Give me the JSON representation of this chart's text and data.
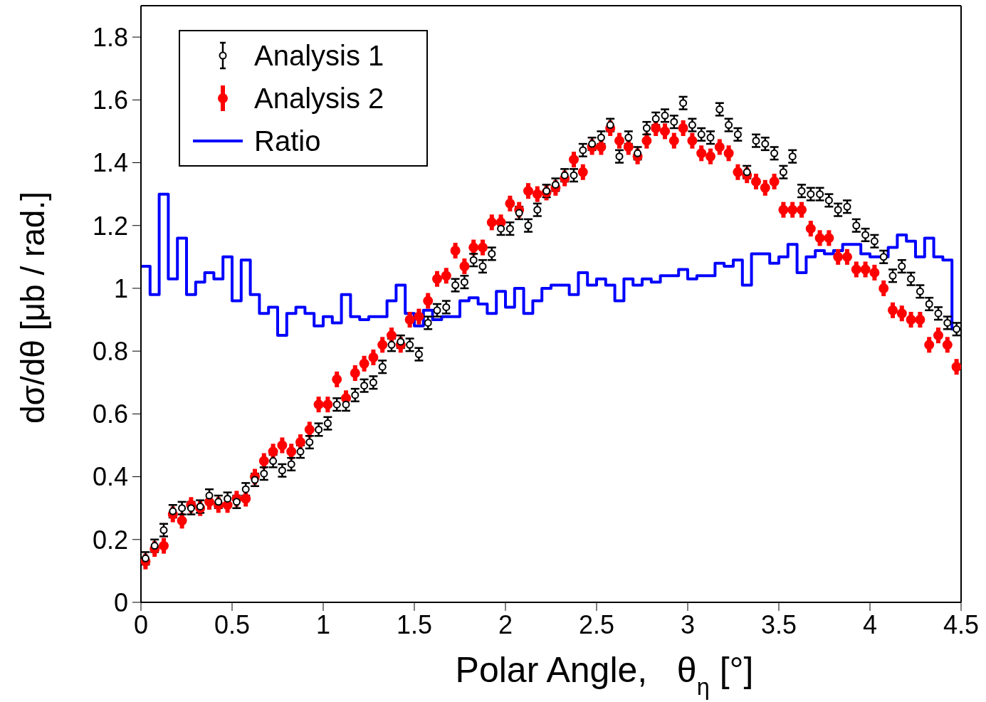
{
  "chart_data": {
    "type": "scatter",
    "xlabel": "Polar Angle,   θ$_{η}$ [°]",
    "ylabel": "dσ/dθ [μb / rad.]",
    "x": [
      0.025,
      0.075,
      0.125,
      0.175,
      0.225,
      0.275,
      0.325,
      0.375,
      0.425,
      0.475,
      0.525,
      0.575,
      0.625,
      0.675,
      0.725,
      0.775,
      0.825,
      0.875,
      0.925,
      0.975,
      1.025,
      1.075,
      1.125,
      1.175,
      1.225,
      1.275,
      1.325,
      1.375,
      1.425,
      1.475,
      1.525,
      1.575,
      1.625,
      1.675,
      1.725,
      1.775,
      1.825,
      1.875,
      1.925,
      1.975,
      2.025,
      2.075,
      2.125,
      2.175,
      2.225,
      2.275,
      2.325,
      2.375,
      2.425,
      2.475,
      2.525,
      2.575,
      2.625,
      2.675,
      2.725,
      2.775,
      2.825,
      2.875,
      2.925,
      2.975,
      3.025,
      3.075,
      3.125,
      3.175,
      3.225,
      3.275,
      3.325,
      3.375,
      3.425,
      3.475,
      3.525,
      3.575,
      3.625,
      3.675,
      3.725,
      3.775,
      3.825,
      3.875,
      3.925,
      3.975,
      4.025,
      4.075,
      4.125,
      4.175,
      4.225,
      4.275,
      4.325,
      4.375,
      4.425,
      4.475
    ],
    "series": [
      {
        "name": "Analysis 1",
        "color": "#000000",
        "marker": "circle",
        "values": [
          0.14,
          0.18,
          0.23,
          0.29,
          0.3,
          0.3,
          0.305,
          0.34,
          0.32,
          0.33,
          0.32,
          0.36,
          0.39,
          0.41,
          0.45,
          0.42,
          0.44,
          0.48,
          0.51,
          0.55,
          0.57,
          0.63,
          0.63,
          0.66,
          0.69,
          0.7,
          0.75,
          0.82,
          0.83,
          0.82,
          0.79,
          0.89,
          0.93,
          0.94,
          1.01,
          1.02,
          1.09,
          1.07,
          1.11,
          1.19,
          1.19,
          1.24,
          1.2,
          1.25,
          1.31,
          1.33,
          1.36,
          1.36,
          1.44,
          1.46,
          1.48,
          1.52,
          1.42,
          1.48,
          1.43,
          1.51,
          1.54,
          1.55,
          1.53,
          1.59,
          1.52,
          1.49,
          1.48,
          1.57,
          1.52,
          1.49,
          1.37,
          1.47,
          1.46,
          1.43,
          1.37,
          1.42,
          1.31,
          1.3,
          1.3,
          1.28,
          1.25,
          1.26,
          1.2,
          1.17,
          1.15,
          1.1,
          1.04,
          1.07,
          1.03,
          0.99,
          0.95,
          0.92,
          0.89,
          0.87
        ],
        "errors": [
          0.02,
          0.02,
          0.02,
          0.02,
          0.02,
          0.02,
          0.02,
          0.02,
          0.02,
          0.02,
          0.02,
          0.02,
          0.02,
          0.02,
          0.02,
          0.02,
          0.02,
          0.02,
          0.02,
          0.02,
          0.02,
          0.02,
          0.02,
          0.02,
          0.02,
          0.02,
          0.02,
          0.02,
          0.02,
          0.02,
          0.02,
          0.02,
          0.02,
          0.02,
          0.02,
          0.02,
          0.02,
          0.02,
          0.02,
          0.02,
          0.02,
          0.02,
          0.02,
          0.02,
          0.02,
          0.02,
          0.02,
          0.02,
          0.02,
          0.02,
          0.02,
          0.02,
          0.02,
          0.02,
          0.02,
          0.02,
          0.02,
          0.02,
          0.02,
          0.02,
          0.02,
          0.02,
          0.02,
          0.02,
          0.02,
          0.02,
          0.02,
          0.02,
          0.02,
          0.02,
          0.02,
          0.02,
          0.02,
          0.02,
          0.02,
          0.02,
          0.02,
          0.02,
          0.02,
          0.02,
          0.02,
          0.02,
          0.02,
          0.02,
          0.02,
          0.02,
          0.02,
          0.02,
          0.02,
          0.02
        ]
      },
      {
        "name": "Analysis 2",
        "color": "#ff0000",
        "marker": "circle",
        "values": [
          0.13,
          0.17,
          0.18,
          0.28,
          0.26,
          0.31,
          0.3,
          0.32,
          0.31,
          0.31,
          0.33,
          0.33,
          0.4,
          0.45,
          0.48,
          0.5,
          0.48,
          0.51,
          0.55,
          0.63,
          0.63,
          0.71,
          0.65,
          0.73,
          0.76,
          0.78,
          0.82,
          0.85,
          0.82,
          0.9,
          0.91,
          0.96,
          1.03,
          1.04,
          1.12,
          1.07,
          1.13,
          1.13,
          1.21,
          1.21,
          1.27,
          1.25,
          1.31,
          1.3,
          1.305,
          1.32,
          1.35,
          1.41,
          1.37,
          1.45,
          1.45,
          1.51,
          1.47,
          1.45,
          1.42,
          1.47,
          1.51,
          1.5,
          1.47,
          1.51,
          1.47,
          1.43,
          1.42,
          1.45,
          1.43,
          1.37,
          1.36,
          1.34,
          1.32,
          1.34,
          1.25,
          1.25,
          1.25,
          1.19,
          1.16,
          1.16,
          1.1,
          1.1,
          1.06,
          1.06,
          1.05,
          1.0,
          0.93,
          0.92,
          0.9,
          0.9,
          0.82,
          0.85,
          0.82,
          0.75
        ],
        "errors": [
          0.025,
          0.025,
          0.025,
          0.025,
          0.025,
          0.025,
          0.025,
          0.025,
          0.025,
          0.025,
          0.025,
          0.025,
          0.025,
          0.025,
          0.025,
          0.025,
          0.025,
          0.025,
          0.025,
          0.025,
          0.025,
          0.025,
          0.025,
          0.025,
          0.025,
          0.025,
          0.025,
          0.025,
          0.025,
          0.025,
          0.025,
          0.025,
          0.025,
          0.025,
          0.025,
          0.025,
          0.025,
          0.025,
          0.025,
          0.025,
          0.025,
          0.025,
          0.025,
          0.025,
          0.025,
          0.025,
          0.025,
          0.025,
          0.025,
          0.025,
          0.025,
          0.025,
          0.025,
          0.025,
          0.025,
          0.025,
          0.025,
          0.025,
          0.025,
          0.025,
          0.025,
          0.025,
          0.025,
          0.025,
          0.025,
          0.025,
          0.025,
          0.025,
          0.025,
          0.025,
          0.025,
          0.025,
          0.025,
          0.025,
          0.025,
          0.025,
          0.025,
          0.025,
          0.025,
          0.025,
          0.025,
          0.025,
          0.025,
          0.025,
          0.025,
          0.025,
          0.025,
          0.025,
          0.025,
          0.025
        ]
      },
      {
        "name": "Ratio",
        "type": "histogram",
        "color": "#0000ff",
        "bins": [
          0,
          0.05,
          0.1,
          0.15,
          0.2,
          0.25,
          0.3,
          0.35,
          0.4,
          0.45,
          0.5,
          0.55,
          0.6,
          0.65,
          0.7,
          0.75,
          0.8,
          0.85,
          0.9,
          0.95,
          1,
          1.05,
          1.1,
          1.15,
          1.2,
          1.25,
          1.3,
          1.35,
          1.4,
          1.45,
          1.5,
          1.55,
          1.6,
          1.65,
          1.7,
          1.75,
          1.8,
          1.85,
          1.9,
          1.95,
          2,
          2.05,
          2.1,
          2.15,
          2.2,
          2.25,
          2.3,
          2.35,
          2.4,
          2.45,
          2.5,
          2.55,
          2.6,
          2.65,
          2.7,
          2.75,
          2.8,
          2.85,
          2.9,
          2.95,
          3,
          3.05,
          3.1,
          3.15,
          3.2,
          3.25,
          3.3,
          3.35,
          3.4,
          3.45,
          3.5,
          3.55,
          3.6,
          3.65,
          3.7,
          3.75,
          3.8,
          3.85,
          3.9,
          3.95,
          4,
          4.05,
          4.1,
          4.15,
          4.2,
          4.25,
          4.3,
          4.35,
          4.4,
          4.45,
          4.5
        ],
        "values": [
          1.07,
          0.98,
          1.3,
          1.03,
          1.16,
          0.98,
          1.02,
          1.05,
          1.03,
          1.1,
          0.96,
          1.09,
          0.98,
          0.92,
          0.94,
          0.85,
          0.92,
          0.94,
          0.92,
          0.88,
          0.91,
          0.89,
          0.98,
          0.91,
          0.9,
          0.91,
          0.91,
          0.96,
          1.01,
          0.92,
          0.88,
          0.93,
          0.9,
          0.91,
          0.91,
          0.96,
          0.97,
          0.95,
          0.92,
          0.99,
          0.94,
          1.0,
          0.92,
          0.96,
          1.0,
          1.01,
          1.01,
          0.98,
          1.05,
          1.01,
          1.03,
          1.01,
          0.96,
          1.03,
          1.01,
          1.03,
          1.02,
          1.04,
          1.04,
          1.06,
          1.03,
          1.04,
          1.04,
          1.08,
          1.07,
          1.09,
          1.01,
          1.11,
          1.11,
          1.08,
          1.1,
          1.14,
          1.05,
          1.1,
          1.12,
          1.11,
          1.12,
          1.14,
          1.14,
          1.11,
          1.1,
          1.1,
          1.13,
          1.17,
          1.15,
          1.1,
          1.16,
          1.1,
          1.09,
          0.87
        ]
      }
    ],
    "xlim": [
      0,
      4.5
    ],
    "xticks": [
      0,
      0.5,
      1,
      1.5,
      2,
      2.5,
      3,
      3.5,
      4,
      4.5
    ],
    "ylim": [
      0,
      1.9
    ],
    "yticks": [
      0,
      0.2,
      0.4,
      0.6,
      0.8,
      1,
      1.2,
      1.4,
      1.6,
      1.8
    ],
    "legend": "top left"
  }
}
